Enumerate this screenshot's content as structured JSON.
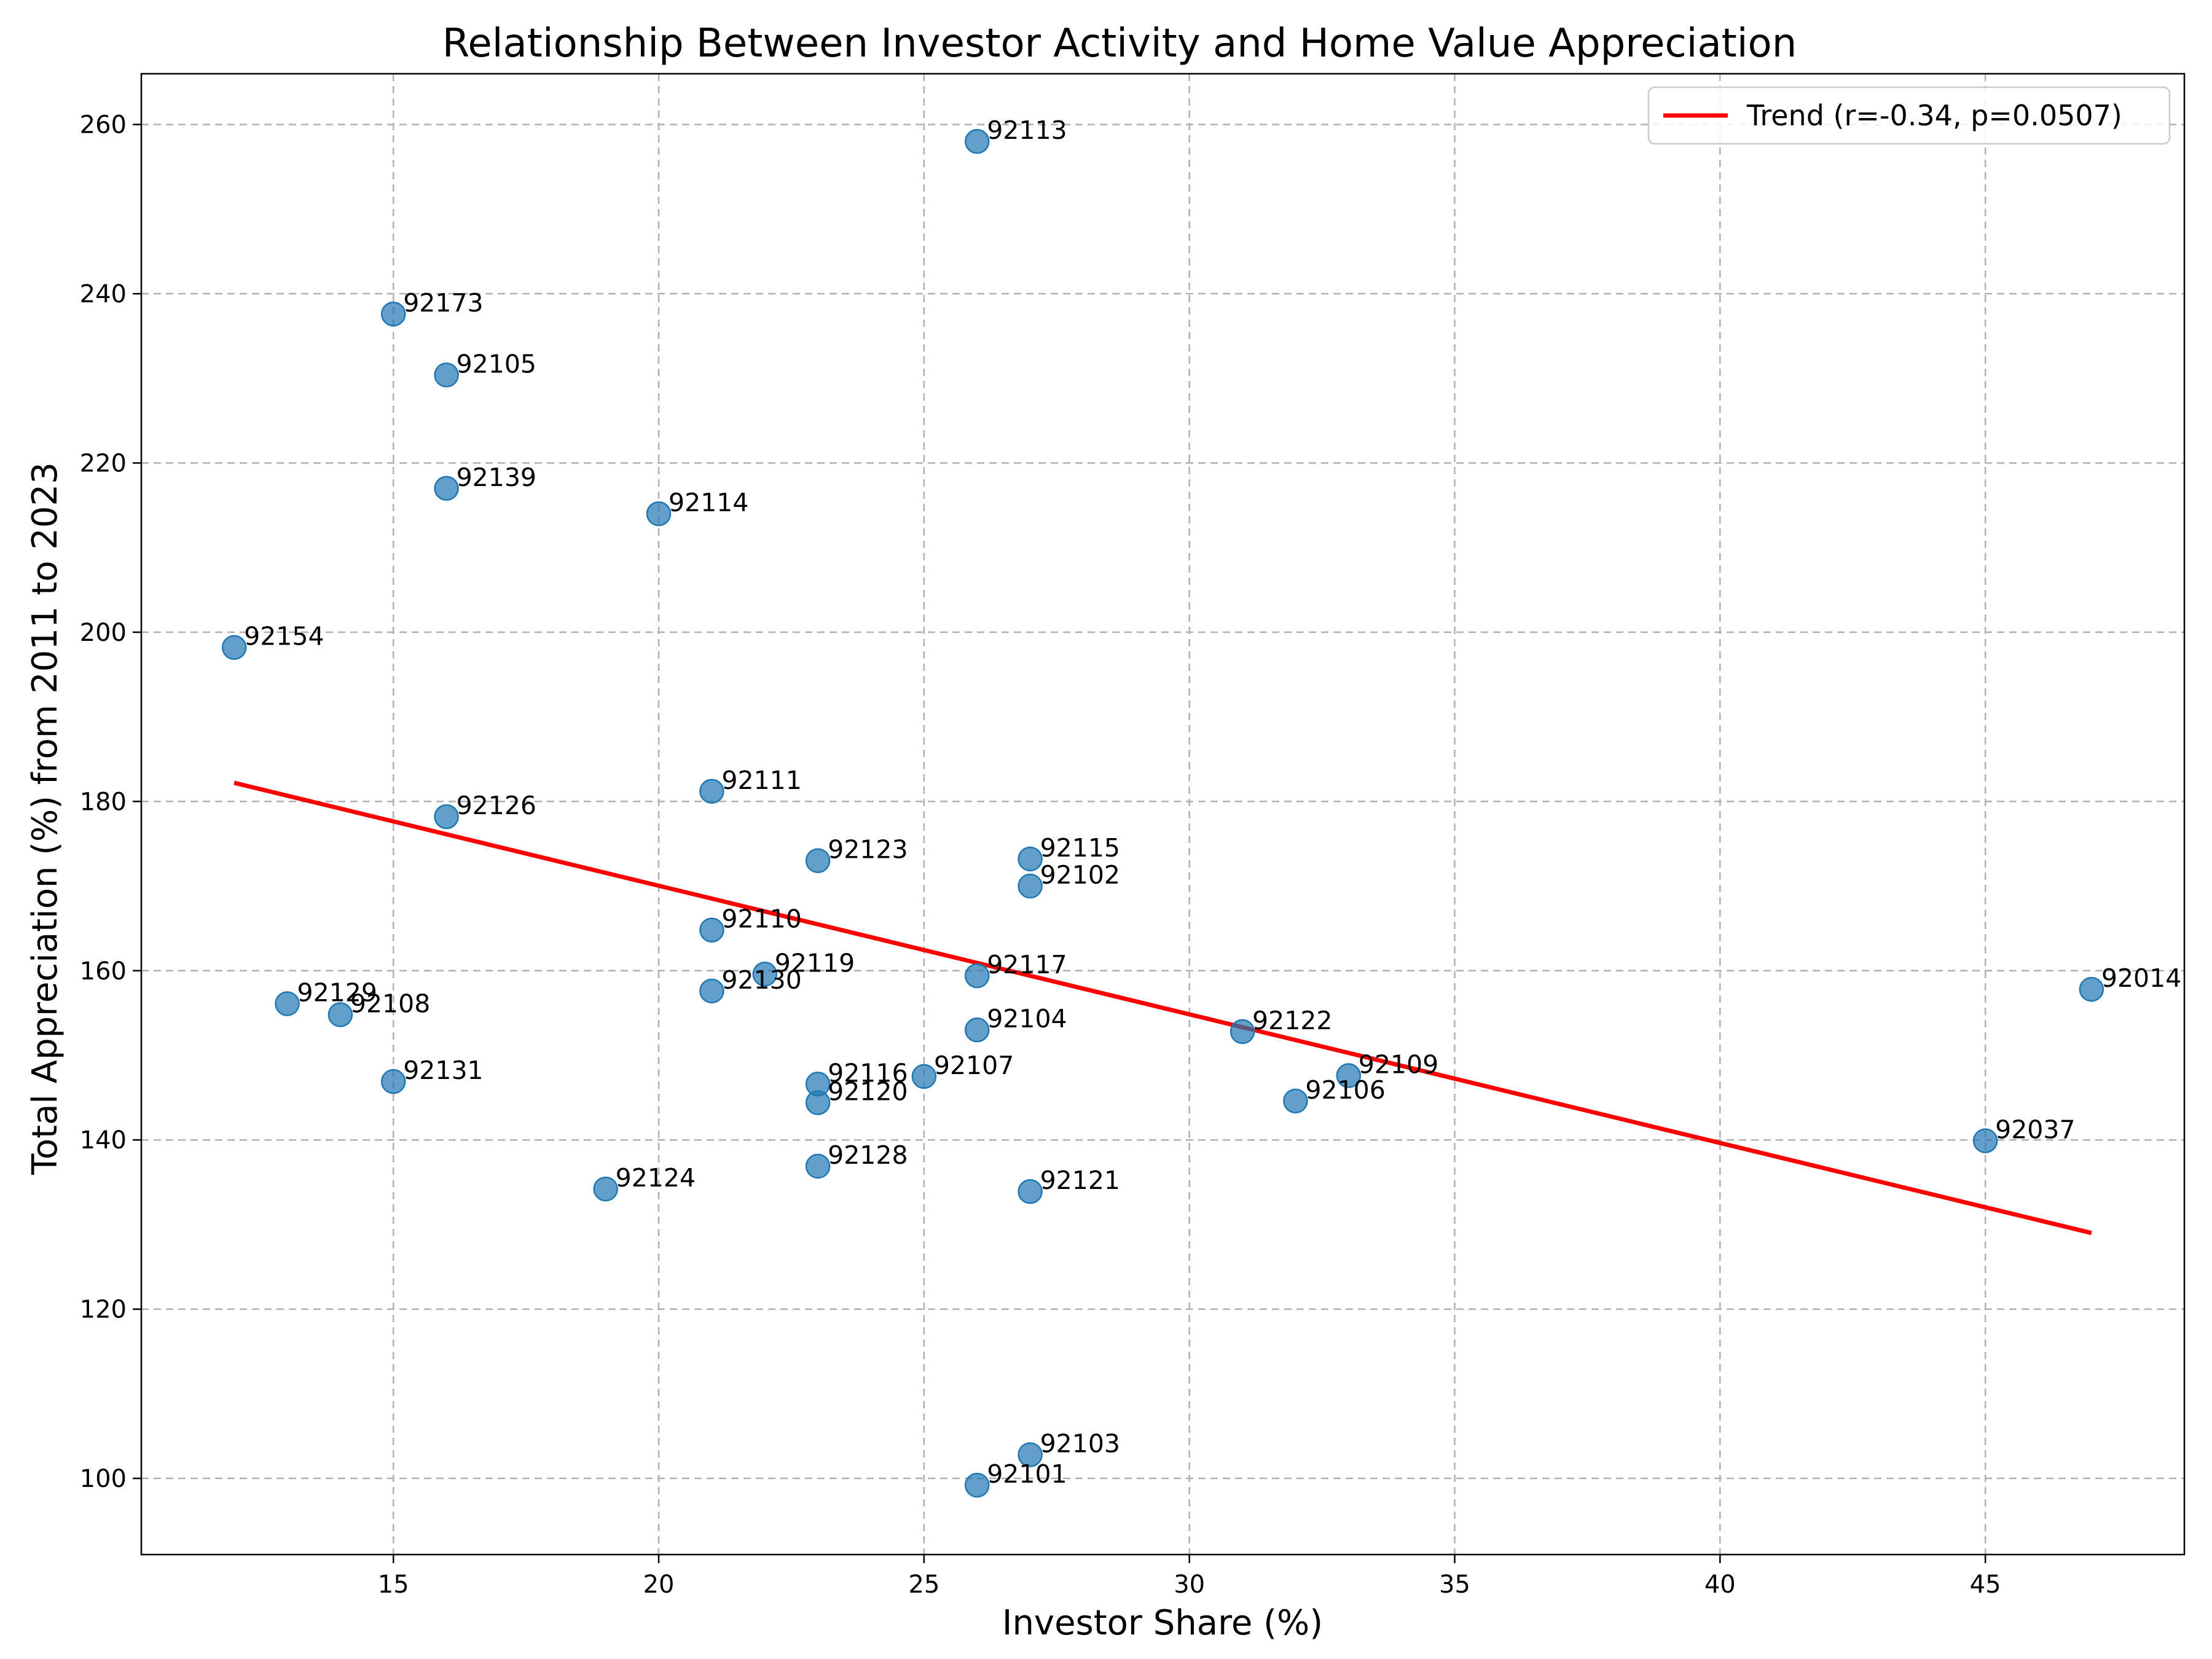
{
  "chart_data": {
    "type": "scatter",
    "title": "Relationship Between Investor Activity and Home Value Appreciation",
    "xlabel": "Investor Share (%)",
    "ylabel": "Total Appreciation (%) from 2011 to 2023",
    "xlim": [
      10.25,
      48.75
    ],
    "ylim": [
      91,
      266
    ],
    "xticks": [
      15,
      20,
      25,
      30,
      35,
      40,
      45
    ],
    "yticks": [
      100,
      120,
      140,
      160,
      180,
      200,
      220,
      240,
      260
    ],
    "grid": true,
    "legend_position": "upper right",
    "colors": {
      "points": "#1f77b4",
      "trend": "#ff0000"
    },
    "series": [
      {
        "type": "scatter",
        "points": [
          {
            "x": 26,
            "y": 258,
            "label": "92113"
          },
          {
            "x": 15,
            "y": 237.6,
            "label": "92173"
          },
          {
            "x": 16,
            "y": 230.4,
            "label": "92105"
          },
          {
            "x": 16,
            "y": 217,
            "label": "92139"
          },
          {
            "x": 20,
            "y": 214,
            "label": "92114"
          },
          {
            "x": 12,
            "y": 198.2,
            "label": "92154"
          },
          {
            "x": 21,
            "y": 181.2,
            "label": "92111"
          },
          {
            "x": 16,
            "y": 178.2,
            "label": "92126"
          },
          {
            "x": 23,
            "y": 173,
            "label": "92123"
          },
          {
            "x": 27,
            "y": 173.2,
            "label": "92115"
          },
          {
            "x": 27,
            "y": 170,
            "label": "92102"
          },
          {
            "x": 21,
            "y": 164.8,
            "label": "92110"
          },
          {
            "x": 22,
            "y": 159.6,
            "label": "92119"
          },
          {
            "x": 26,
            "y": 159.4,
            "label": "92117"
          },
          {
            "x": 21,
            "y": 157.6,
            "label": "92130"
          },
          {
            "x": 47,
            "y": 157.8,
            "label": "92014"
          },
          {
            "x": 13,
            "y": 156.1,
            "label": "92129"
          },
          {
            "x": 14,
            "y": 154.8,
            "label": "92108"
          },
          {
            "x": 26,
            "y": 153,
            "label": "92104"
          },
          {
            "x": 31,
            "y": 152.8,
            "label": "92122"
          },
          {
            "x": 33,
            "y": 147.6,
            "label": "92109"
          },
          {
            "x": 25,
            "y": 147.5,
            "label": "92107"
          },
          {
            "x": 15,
            "y": 146.9,
            "label": "92131"
          },
          {
            "x": 23,
            "y": 146.6,
            "label": "92116"
          },
          {
            "x": 23,
            "y": 144.4,
            "label": "92120"
          },
          {
            "x": 32,
            "y": 144.6,
            "label": "92106"
          },
          {
            "x": 45,
            "y": 139.9,
            "label": "92037"
          },
          {
            "x": 23,
            "y": 136.9,
            "label": "92128"
          },
          {
            "x": 19,
            "y": 134.2,
            "label": "92124"
          },
          {
            "x": 27,
            "y": 133.9,
            "label": "92121"
          },
          {
            "x": 27,
            "y": 102.8,
            "label": "92103"
          },
          {
            "x": 26,
            "y": 99.2,
            "label": "92101"
          }
        ]
      },
      {
        "type": "line",
        "name": "Trend (r=-0.34, p=0.0507)",
        "x": [
          12,
          47
        ],
        "y": [
          182.2,
          129.0
        ]
      }
    ]
  }
}
